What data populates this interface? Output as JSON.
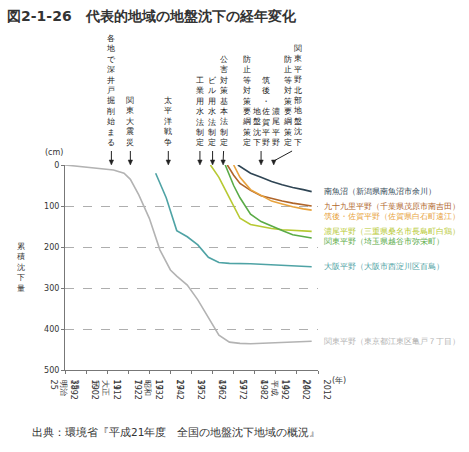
{
  "chart_data": {
    "type": "line",
    "title": "図2-1-26　代表的地域の地盤沈下の経年変化",
    "y_label": "累積沈下量",
    "y_unit": "(cm)",
    "x_unit": "(年)",
    "source": "出典：環境省『平成21年度　全国の地盤沈下地域の概況』",
    "xlim": [
      1892,
      2012
    ],
    "xticks": [
      1892,
      1902,
      1912,
      1922,
      1932,
      1942,
      1952,
      1962,
      1972,
      1982,
      1992,
      2002,
      2012
    ],
    "era_ticks": [
      {
        "value": 1892,
        "era": "明治",
        "label": "25"
      },
      {
        "value": 1902,
        "label": "35"
      },
      {
        "value": 1912,
        "era": "大正",
        "label": "元"
      },
      {
        "value": 1922,
        "label": "11"
      },
      {
        "value": 1932,
        "era": "昭和",
        "label": "7"
      },
      {
        "value": 1942,
        "label": "17"
      },
      {
        "value": 1952,
        "label": "27"
      },
      {
        "value": 1962,
        "label": "37"
      },
      {
        "value": 1972,
        "label": "47"
      },
      {
        "value": 1982,
        "label": "57"
      },
      {
        "value": 1992,
        "era": "平成",
        "label": "4"
      },
      {
        "value": 2002,
        "label": "14"
      },
      {
        "value": 2012,
        "label": "24"
      }
    ],
    "ylim": [
      500,
      0
    ],
    "yticks": [
      0,
      100,
      200,
      300,
      400,
      500
    ],
    "grid": true,
    "line_style": "solid",
    "events": [
      {
        "x": 1914,
        "lines": [
          "各地で深井戸掘削始まる"
        ]
      },
      {
        "x": 1923,
        "lines": [
          "関東大震災"
        ]
      },
      {
        "x": 1941,
        "lines": [
          "太平洋戦争"
        ]
      },
      {
        "x": 1956,
        "lines": [
          "工業用水法制定"
        ]
      },
      {
        "x": 1962,
        "lines": [
          "ビル用水法制定"
        ]
      },
      {
        "x": 1967,
        "lines": [
          "公害対策基本法制定"
        ]
      },
      {
        "x": 1985,
        "lines": [
          "濃尾平野",
          "筑後・佐賀平野",
          "地盤沈下",
          "防止等対策要綱策定"
        ]
      },
      {
        "x": 1991,
        "lines": [
          "関東平野北部地盤沈下",
          "防止等対策要綱策定"
        ]
      }
    ],
    "series": [
      {
        "name": "南魚沼（新潟県南魚沼市余川）",
        "color": "#2f4554",
        "x": [
          1974,
          1980,
          1985,
          1990,
          1995,
          2000,
          2005,
          2009
        ],
        "values": [
          0,
          20,
          30,
          40,
          48,
          55,
          60,
          65
        ]
      },
      {
        "name": "九十九里平野（千葉県茂原市南吉田）",
        "color": "#b0652a",
        "x": [
          1969,
          1972,
          1975,
          1980,
          1985,
          1990,
          1995,
          2000,
          2005,
          2009
        ],
        "values": [
          0,
          25,
          45,
          62,
          75,
          82,
          88,
          93,
          97,
          100
        ]
      },
      {
        "name": "筑後・佐賀平野（佐賀県白石町遠江）",
        "color": "#e8a33d",
        "x": [
          1972,
          1975,
          1980,
          1985,
          1990,
          1995,
          2000,
          2005,
          2009
        ],
        "values": [
          0,
          30,
          60,
          75,
          88,
          95,
          102,
          107,
          110
        ]
      },
      {
        "name": "濃尾平野（三重県桑名市長島町白鶏）",
        "color": "#b7c932",
        "x": [
          1961,
          1965,
          1970,
          1975,
          1980,
          1985,
          1990,
          1995,
          2000,
          2005,
          2009
        ],
        "values": [
          0,
          30,
          80,
          130,
          145,
          150,
          155,
          158,
          160,
          161,
          162
        ]
      },
      {
        "name": "関東平野（埼玉県越谷市弥栄町）",
        "color": "#5aab47",
        "x": [
          1968,
          1972,
          1975,
          1980,
          1985,
          1990,
          1995,
          2000,
          2005,
          2009
        ],
        "values": [
          0,
          50,
          80,
          120,
          138,
          150,
          160,
          170,
          175,
          178
        ]
      },
      {
        "name": "大阪平野（大阪市西淀川区百島）",
        "color": "#4fa3a5",
        "x": [
          1935,
          1940,
          1945,
          1950,
          1955,
          1960,
          1965,
          1970,
          1980,
          1990,
          2000,
          2009
        ],
        "values": [
          20,
          80,
          160,
          175,
          195,
          225,
          238,
          240,
          241,
          243,
          245,
          248
        ]
      },
      {
        "name": "関東平野（東京都江東区亀戸７丁目）",
        "color": "#b3b3b3",
        "x": [
          1892,
          1900,
          1910,
          1915,
          1920,
          1923,
          1927,
          1932,
          1937,
          1942,
          1945,
          1950,
          1955,
          1960,
          1965,
          1970,
          1975,
          1980,
          1990,
          2000,
          2009
        ],
        "values": [
          0,
          4,
          9,
          12,
          20,
          35,
          73,
          130,
          207,
          256,
          271,
          293,
          329,
          373,
          415,
          432,
          435,
          436,
          434,
          432,
          430
        ]
      }
    ]
  }
}
